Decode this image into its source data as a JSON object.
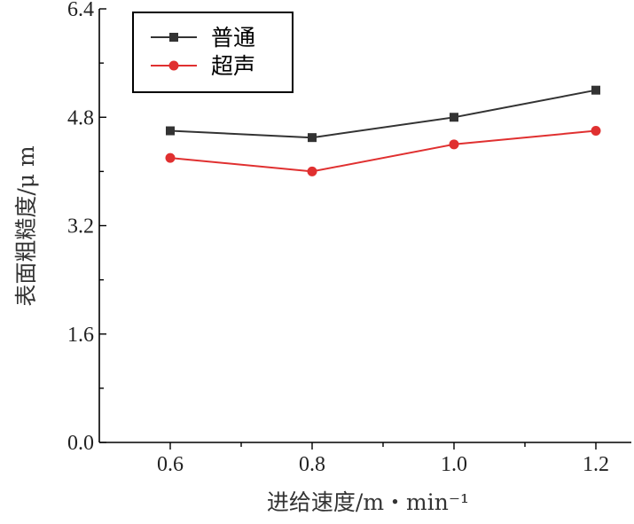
{
  "chart_data": {
    "type": "line",
    "title": "",
    "xlabel": "进给速度/m・min⁻¹",
    "ylabel": "表面粗糙度/μ m",
    "x": [
      0.6,
      0.8,
      1.0,
      1.2
    ],
    "x_tick_labels": [
      "0.6",
      "0.8",
      "1.0",
      "1.2"
    ],
    "xlim": [
      0.5,
      1.25
    ],
    "ylim": [
      0.0,
      6.4
    ],
    "y_ticks": [
      0.0,
      1.6,
      3.2,
      4.8,
      6.4
    ],
    "y_tick_labels": [
      "0.0",
      "1.6",
      "3.2",
      "4.8",
      "6.4"
    ],
    "grid": false,
    "legend_position": "top-left",
    "series": [
      {
        "name": "普通",
        "values": [
          4.6,
          4.5,
          4.8,
          5.2
        ],
        "color": "#333333",
        "marker": "square"
      },
      {
        "name": "超声",
        "values": [
          4.2,
          4.0,
          4.4,
          4.6
        ],
        "color": "#e03030",
        "marker": "circle"
      }
    ]
  }
}
